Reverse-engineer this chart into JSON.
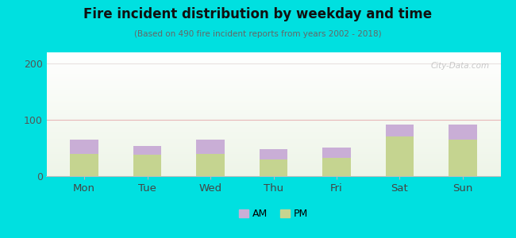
{
  "title": "Fire incident distribution by weekday and time",
  "subtitle": "(Based on 490 fire incident reports from years 2002 - 2018)",
  "categories": [
    "Mon",
    "Tue",
    "Wed",
    "Thu",
    "Fri",
    "Sat",
    "Sun"
  ],
  "pm_values": [
    40,
    38,
    40,
    30,
    33,
    70,
    65
  ],
  "am_values": [
    25,
    15,
    25,
    18,
    18,
    22,
    27
  ],
  "am_color": "#c9aed6",
  "pm_color": "#c5d490",
  "background_outer": "#00e0e0",
  "ylim": [
    0,
    220
  ],
  "yticks": [
    0,
    100,
    200
  ],
  "bar_width": 0.45,
  "grid_color_100": "#e8b8b8",
  "grid_color_200": "#e8e0e0",
  "watermark": "City-Data.com"
}
